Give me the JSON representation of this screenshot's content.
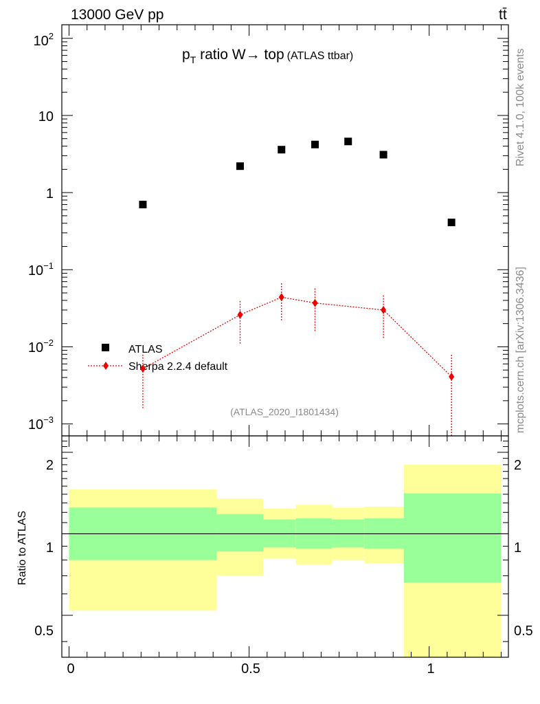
{
  "header": {
    "energy_label": "13000 GeV pp",
    "process_label": "tt̄"
  },
  "side_labels": {
    "rivet": "Rivet 4.1.0,  100k events",
    "mcplots": "mcplots.cern.ch [arXiv:1306.3436]"
  },
  "colors": {
    "data": "#000000",
    "mc": "#ee0000",
    "band_inner": "#99ff99",
    "band_outer": "#ffff99"
  },
  "chart_data": [
    {
      "type": "scatter",
      "title": "p_T ratio W→ top",
      "title_main_prefix": "p",
      "title_main_sub": "T",
      "title_main_rest": " ratio W→ top",
      "title_note": "(ATLAS ttbar)",
      "watermark": "(ATLAS_2020_I1801434)",
      "yscale": "log",
      "ylim": [
        0.0007,
        150
      ],
      "xlim": [
        -0.02,
        1.22
      ],
      "y_tick_labels": [
        {
          "base": "10",
          "exp": "2"
        },
        {
          "base": "10",
          "exp": ""
        },
        {
          "base": "1",
          "exp": ""
        },
        {
          "base": "10",
          "exp": "−1"
        },
        {
          "base": "10",
          "exp": "−2"
        },
        {
          "base": "10",
          "exp": "−3"
        }
      ],
      "legend": [
        "ATLAS",
        "Sherpa 2.2.4 default"
      ],
      "legend_position": "bottom-left",
      "series": [
        {
          "name": "ATLAS",
          "marker": "square",
          "x": [
            0.205,
            0.475,
            0.59,
            0.683,
            0.775,
            0.873,
            1.062
          ],
          "y": [
            0.7,
            2.2,
            3.6,
            4.2,
            4.6,
            3.1,
            0.41
          ]
        },
        {
          "name": "Sherpa 2.2.4 default",
          "marker": "diamond",
          "x": [
            0.205,
            0.475,
            0.59,
            0.683,
            0.873,
            1.062
          ],
          "y": [
            0.0052,
            0.026,
            0.044,
            0.037,
            0.03,
            0.0041
          ],
          "err_low": [
            0.0016,
            0.011,
            0.022,
            0.016,
            0.013,
            0.0007
          ],
          "err_high": [
            0.0082,
            0.04,
            0.067,
            0.058,
            0.048,
            0.0082
          ]
        }
      ]
    },
    {
      "type": "area",
      "ylabel": "Ratio to ATLAS",
      "ylim": [
        0.35,
        2.3
      ],
      "xlim": [
        -0.02,
        1.22
      ],
      "x_tick_labels": [
        "0",
        "0.5",
        "1"
      ],
      "y_tick_labels": [
        "0.5",
        "1",
        "2"
      ],
      "reference_line": 1,
      "bins": [
        {
          "lo": 0.0,
          "hi": 0.41,
          "inner": [
            0.8,
            1.25
          ],
          "outer": [
            0.52,
            1.46
          ]
        },
        {
          "lo": 0.41,
          "hi": 0.54,
          "inner": [
            0.86,
            1.18
          ],
          "outer": [
            0.7,
            1.35
          ]
        },
        {
          "lo": 0.54,
          "hi": 0.63,
          "inner": [
            0.89,
            1.13
          ],
          "outer": [
            0.81,
            1.24
          ]
        },
        {
          "lo": 0.63,
          "hi": 0.73,
          "inner": [
            0.88,
            1.14
          ],
          "outer": [
            0.77,
            1.28
          ]
        },
        {
          "lo": 0.73,
          "hi": 0.82,
          "inner": [
            0.89,
            1.13
          ],
          "outer": [
            0.8,
            1.25
          ]
        },
        {
          "lo": 0.82,
          "hi": 0.93,
          "inner": [
            0.88,
            1.14
          ],
          "outer": [
            0.78,
            1.26
          ]
        },
        {
          "lo": 0.93,
          "hi": 1.2,
          "inner": [
            0.66,
            1.41
          ],
          "outer": [
            0.3,
            1.8
          ]
        }
      ]
    }
  ]
}
